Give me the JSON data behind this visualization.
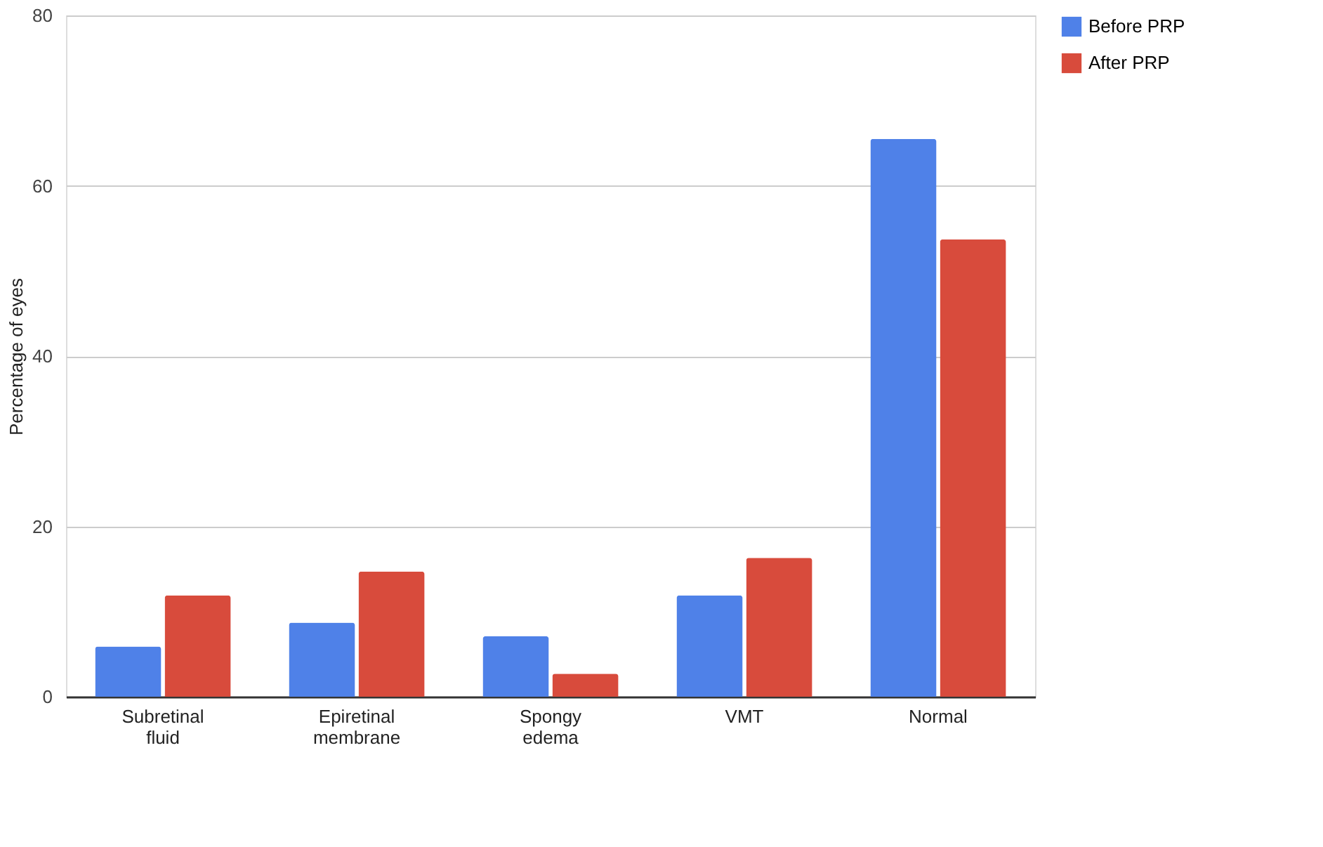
{
  "chart_data": {
    "type": "bar",
    "ylabel": "Percentage of eyes",
    "categories": [
      "Subretinal fluid",
      "Epiretinal membrane",
      "Spongy edema",
      "VMT",
      "Normal"
    ],
    "series": [
      {
        "name": "Before PRP",
        "color": "#4f81e8",
        "values": [
          5.9,
          8.7,
          7.1,
          11.9,
          65.5
        ]
      },
      {
        "name": "After PRP",
        "color": "#d84b3c",
        "values": [
          11.9,
          14.7,
          2.7,
          16.3,
          53.7
        ]
      }
    ],
    "ylim": [
      0,
      80
    ],
    "yticks": [
      0,
      20,
      40,
      60,
      80
    ],
    "grid": "y",
    "legend": "top right"
  }
}
